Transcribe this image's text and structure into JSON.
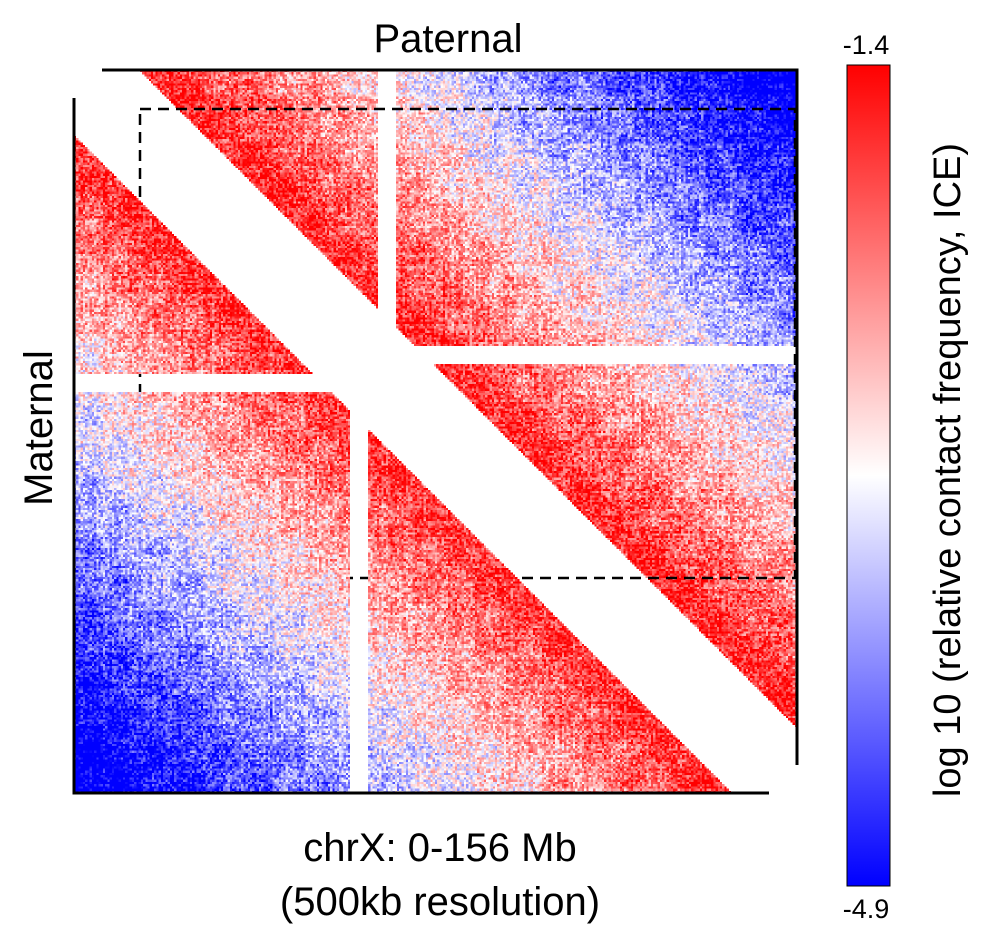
{
  "chart_data": {
    "type": "heatmap",
    "top_label": "Paternal",
    "left_label": "Maternal",
    "xlabel_line1": "chrX: 0-156 Mb",
    "xlabel_line2": "(500kb resolution)",
    "colorbar": {
      "label": "log 10 (relative contact frequency, ICE)",
      "max_label": "-1.4",
      "min_label": "-4.9",
      "max": -1.4,
      "min": -4.9,
      "colors": [
        "#0000ff",
        "#ffffff",
        "#ff0000"
      ]
    },
    "region_mb": [
      0,
      156
    ],
    "resolution_kb": 500,
    "masked_band_mb": [
      62,
      66
    ],
    "highlight_region_mb": [
      0,
      100
    ],
    "grid": false
  }
}
